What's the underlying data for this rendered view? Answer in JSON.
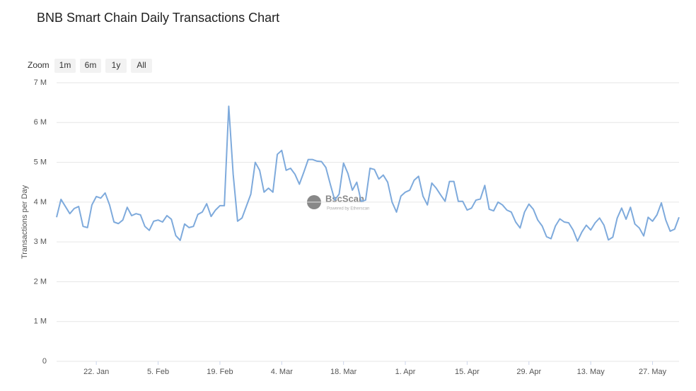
{
  "chart_data": {
    "type": "line",
    "title": "BNB Smart Chain Daily Transactions Chart",
    "zoom": {
      "label": "Zoom",
      "buttons": [
        "1m",
        "6m",
        "1y",
        "All"
      ]
    },
    "watermark": {
      "name": "BscScan",
      "tagline": "Powered by Etherscan"
    },
    "ylabel": "Transactions per Day",
    "x": [
      "01-13",
      "01-14",
      "01-15",
      "01-16",
      "01-17",
      "01-18",
      "01-19",
      "01-20",
      "01-21",
      "01-22",
      "01-23",
      "01-24",
      "01-25",
      "01-26",
      "01-27",
      "01-28",
      "01-29",
      "01-30",
      "01-31",
      "02-01",
      "02-02",
      "02-03",
      "02-04",
      "02-05",
      "02-06",
      "02-07",
      "02-08",
      "02-09",
      "02-10",
      "02-11",
      "02-12",
      "02-13",
      "02-14",
      "02-15",
      "02-16",
      "02-17",
      "02-18",
      "02-19",
      "02-20",
      "02-21",
      "02-22",
      "02-23",
      "02-24",
      "02-25",
      "02-26",
      "02-27",
      "02-28",
      "02-29",
      "03-01",
      "03-02",
      "03-03",
      "03-04",
      "03-05",
      "03-06",
      "03-07",
      "03-08",
      "03-09",
      "03-10",
      "03-11",
      "03-12",
      "03-13",
      "03-14",
      "03-15",
      "03-16",
      "03-17",
      "03-18",
      "03-19",
      "03-20",
      "03-21",
      "03-22",
      "03-23",
      "03-24",
      "03-25",
      "03-26",
      "03-27",
      "03-28",
      "03-29",
      "03-30",
      "03-31",
      "04-01",
      "04-02",
      "04-03",
      "04-04",
      "04-05",
      "04-06",
      "04-07",
      "04-08",
      "04-09",
      "04-10",
      "04-11",
      "04-12",
      "04-13",
      "04-14",
      "04-15",
      "04-16",
      "04-17",
      "04-18",
      "04-19",
      "04-20",
      "04-21",
      "04-22",
      "04-23",
      "04-24",
      "04-25",
      "04-26",
      "04-27",
      "04-28",
      "04-29",
      "04-30",
      "05-01",
      "05-02",
      "05-03",
      "05-04",
      "05-05",
      "05-06",
      "05-07",
      "05-08",
      "05-09",
      "05-10",
      "05-11",
      "05-12",
      "05-13",
      "05-14",
      "05-15",
      "05-16",
      "05-17",
      "05-18",
      "05-19",
      "05-20",
      "05-21",
      "05-22",
      "05-23",
      "05-24",
      "05-25",
      "05-26",
      "05-27",
      "05-28",
      "05-29",
      "05-30",
      "05-31",
      "06-01",
      "06-02"
    ],
    "series": [
      {
        "name": "Transactions per Day",
        "color": "#7eaadc",
        "values": [
          3.62,
          4.07,
          3.89,
          3.71,
          3.84,
          3.89,
          3.39,
          3.36,
          3.93,
          4.14,
          4.1,
          4.23,
          3.93,
          3.5,
          3.46,
          3.55,
          3.87,
          3.66,
          3.71,
          3.68,
          3.39,
          3.29,
          3.52,
          3.55,
          3.5,
          3.66,
          3.57,
          3.16,
          3.04,
          3.45,
          3.36,
          3.39,
          3.69,
          3.75,
          3.96,
          3.64,
          3.8,
          3.91,
          3.91,
          6.41,
          4.7,
          3.52,
          3.6,
          3.9,
          4.2,
          5.0,
          4.8,
          4.25,
          4.35,
          4.25,
          5.2,
          5.3,
          4.8,
          4.85,
          4.7,
          4.45,
          4.75,
          5.07,
          5.07,
          5.03,
          5.02,
          4.87,
          4.45,
          4.05,
          4.2,
          4.98,
          4.72,
          4.3,
          4.5,
          4.02,
          4.05,
          4.85,
          4.82,
          4.58,
          4.68,
          4.5,
          4.0,
          3.75,
          4.15,
          4.25,
          4.3,
          4.55,
          4.65,
          4.15,
          3.93,
          4.48,
          4.35,
          4.18,
          4.02,
          4.52,
          4.52,
          4.02,
          4.02,
          3.8,
          3.85,
          4.05,
          4.08,
          4.42,
          3.82,
          3.78,
          4.0,
          3.93,
          3.8,
          3.75,
          3.5,
          3.35,
          3.75,
          3.95,
          3.82,
          3.55,
          3.4,
          3.13,
          3.08,
          3.4,
          3.58,
          3.5,
          3.48,
          3.3,
          3.02,
          3.25,
          3.42,
          3.3,
          3.48,
          3.6,
          3.42,
          3.05,
          3.12,
          3.6,
          3.85,
          3.57,
          3.87,
          3.45,
          3.35,
          3.15,
          3.62,
          3.52,
          3.68,
          3.98,
          3.55,
          3.27,
          3.32,
          3.62
        ]
      }
    ],
    "xlim": [
      "01-13",
      "06-02"
    ],
    "xticks": [
      {
        "value": "01-22",
        "label": "22. Jan"
      },
      {
        "value": "02-05",
        "label": "5. Feb"
      },
      {
        "value": "02-19",
        "label": "19. Feb"
      },
      {
        "value": "03-04",
        "label": "4. Mar"
      },
      {
        "value": "03-18",
        "label": "18. Mar"
      },
      {
        "value": "04-01",
        "label": "1. Apr"
      },
      {
        "value": "04-15",
        "label": "15. Apr"
      },
      {
        "value": "04-29",
        "label": "29. Apr"
      },
      {
        "value": "05-13",
        "label": "13. May"
      },
      {
        "value": "05-27",
        "label": "27. May"
      }
    ],
    "ylim": [
      0,
      7
    ],
    "yticks": [
      0,
      {
        "value": 1,
        "label": "1 M"
      },
      {
        "value": 2,
        "label": "2 M"
      },
      {
        "value": 3,
        "label": "3 M"
      },
      {
        "value": 4,
        "label": "4 M"
      },
      {
        "value": 5,
        "label": "5 M"
      },
      {
        "value": 6,
        "label": "6 M"
      },
      {
        "value": 7,
        "label": "7 M"
      }
    ],
    "grid": true
  }
}
